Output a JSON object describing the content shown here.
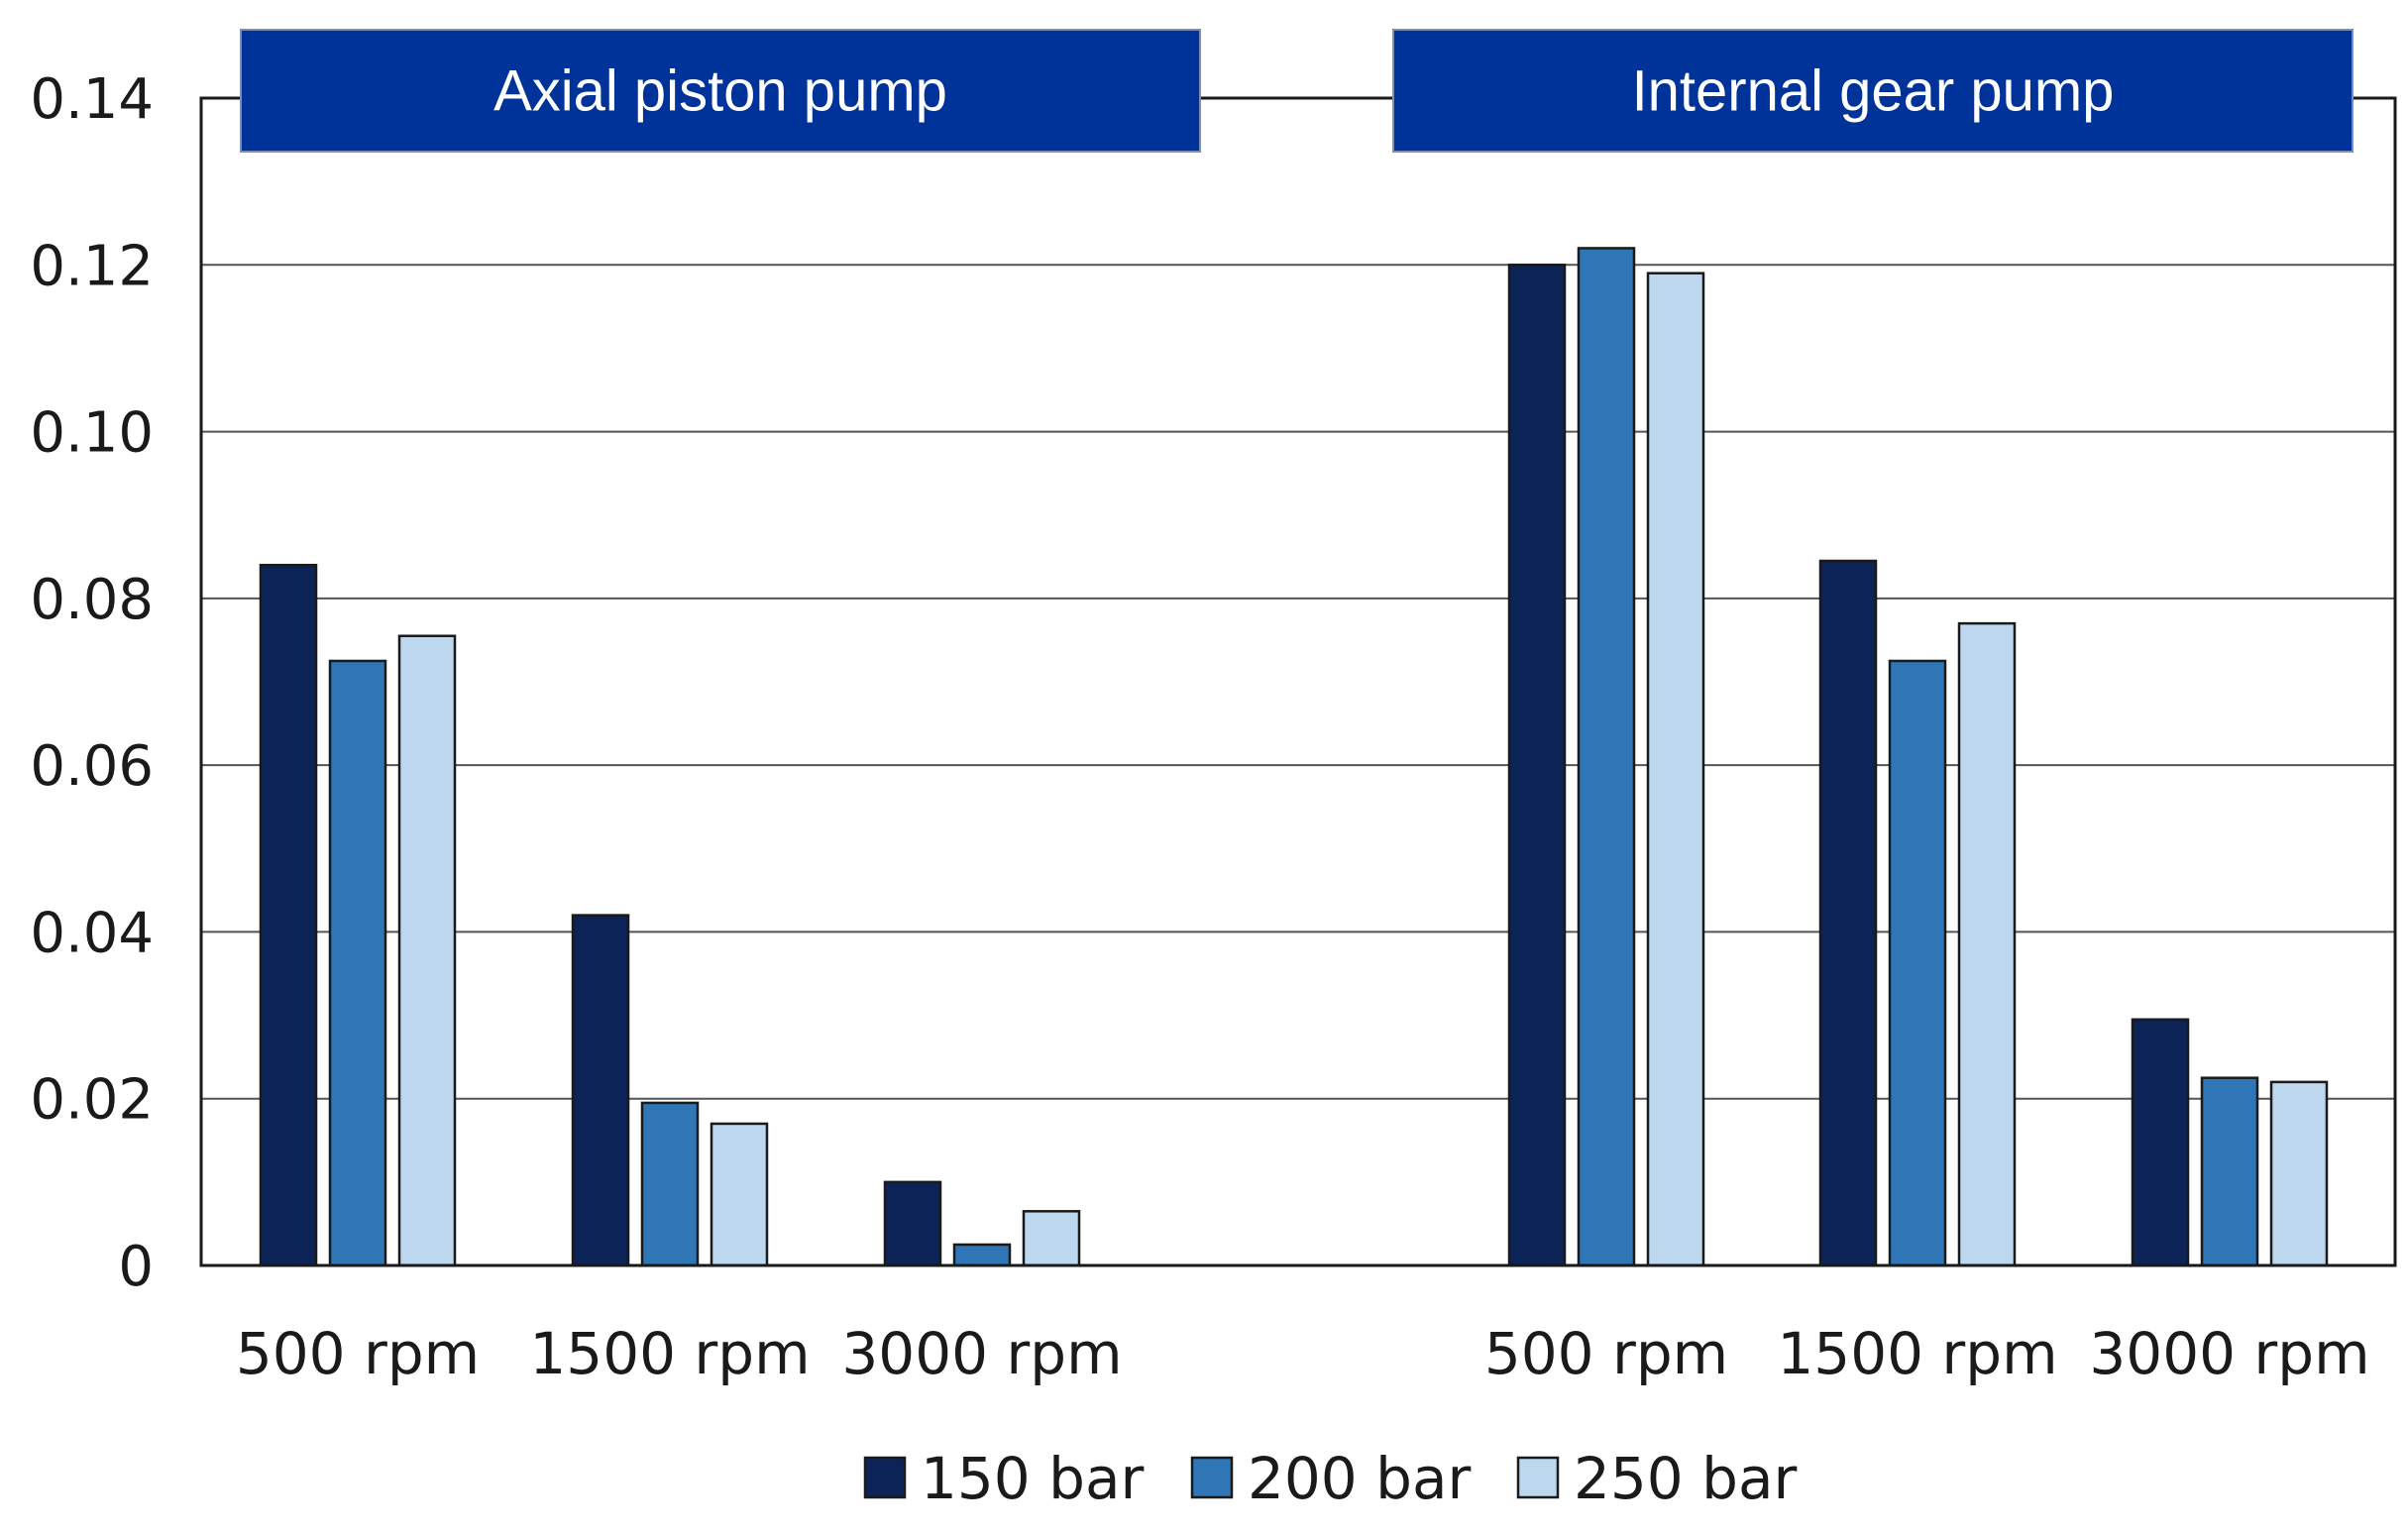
{
  "chart_data": {
    "type": "bar",
    "title": "",
    "xlabel": "",
    "ylabel": "",
    "ylim": [
      0,
      0.14
    ],
    "yticks": [
      "0",
      "0.02",
      "0.04",
      "0.06",
      "0.08",
      "0.10",
      "0.12",
      "0.14"
    ],
    "ytick_values": [
      0,
      0.02,
      0.04,
      0.06,
      0.08,
      0.1,
      0.12,
      0.14
    ],
    "grid": true,
    "legend_position": "bottom-center",
    "groups": [
      {
        "name": "Axial piston pump",
        "categories": [
          "500 rpm",
          "1500 rpm",
          "3000 rpm"
        ],
        "series": [
          {
            "name": "150 bar",
            "values": [
              0.084,
              0.042,
              0.01
            ]
          },
          {
            "name": "200 bar",
            "values": [
              0.0725,
              0.0195,
              0.0025
            ]
          },
          {
            "name": "250 bar",
            "values": [
              0.0755,
              0.017,
              0.0065
            ]
          }
        ]
      },
      {
        "name": "Internal gear pump",
        "categories": [
          "500 rpm",
          "1500 rpm",
          "3000 rpm"
        ],
        "series": [
          {
            "name": "150 bar",
            "values": [
              0.12,
              0.0845,
              0.0295
            ]
          },
          {
            "name": "200 bar",
            "values": [
              0.122,
              0.0725,
              0.0225
            ]
          },
          {
            "name": "250 bar",
            "values": [
              0.119,
              0.077,
              0.022
            ]
          }
        ]
      }
    ],
    "legend": [
      "150 bar",
      "200 bar",
      "250 bar"
    ],
    "colors": {
      "150 bar": "#0c2358",
      "200 bar": "#2e76b6",
      "250 bar": "#bdd7ee",
      "header": "#00339a"
    }
  }
}
